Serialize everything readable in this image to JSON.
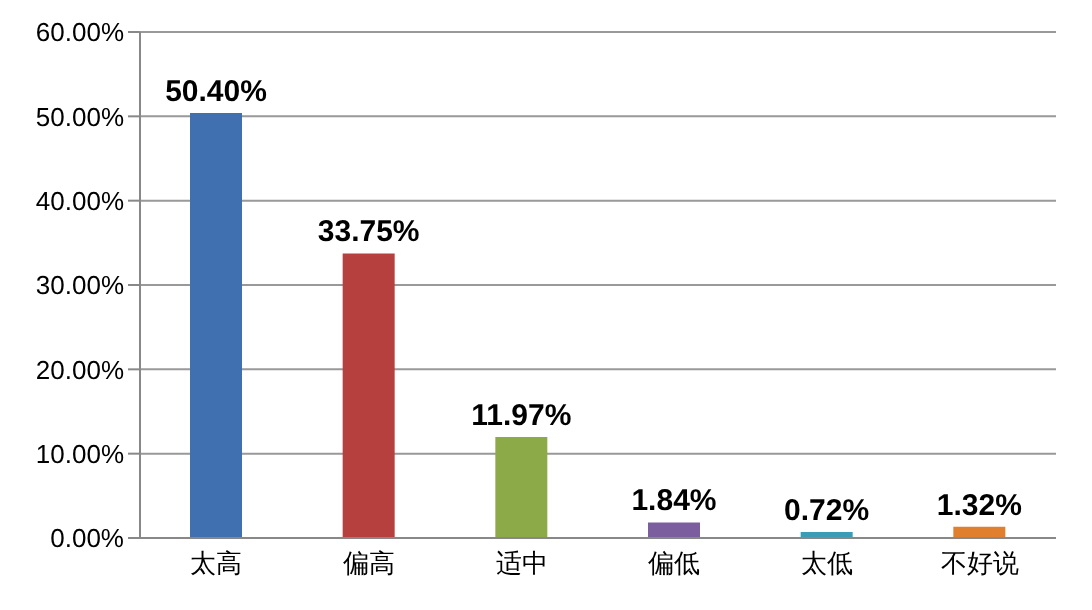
{
  "chart_data": {
    "type": "bar",
    "categories": [
      "太高",
      "偏高",
      "适中",
      "偏低",
      "太低",
      "不好说"
    ],
    "values": [
      50.4,
      33.75,
      11.97,
      1.84,
      0.72,
      1.32
    ],
    "colors": [
      "#4170b0",
      "#b5403d",
      "#8cab48",
      "#7b5e9e",
      "#3a9cb5",
      "#e07f2e"
    ],
    "value_labels": [
      "50.40%",
      "33.75%",
      "11.97%",
      "1.84%",
      "0.72%",
      "1.32%"
    ],
    "ylim": [
      0,
      60
    ],
    "yticks": [
      {
        "value": 0,
        "label": "0.00%"
      },
      {
        "value": 10,
        "label": "10.00%"
      },
      {
        "value": 20,
        "label": "20.00%"
      },
      {
        "value": 30,
        "label": "30.00%"
      },
      {
        "value": 40,
        "label": "40.00%"
      },
      {
        "value": 50,
        "label": "50.00%"
      },
      {
        "value": 60,
        "label": "60.00%"
      }
    ],
    "grid": "y"
  }
}
